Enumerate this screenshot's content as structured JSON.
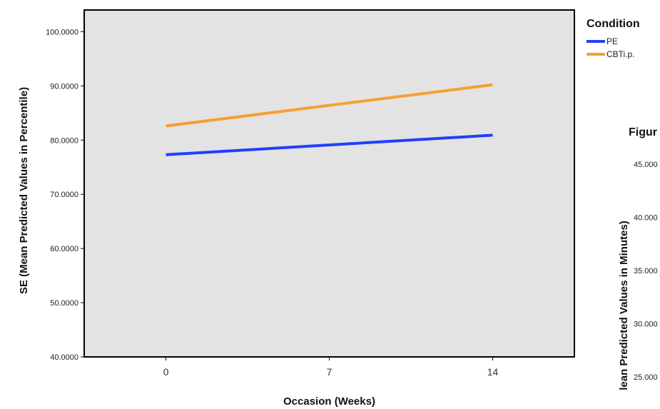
{
  "chart_data": {
    "type": "line",
    "xlabel": "Occasion (Weeks)",
    "ylabel": "SE (Mean Predicted Values in Percentile)",
    "x_ticks": [
      "0",
      "7",
      "14"
    ],
    "y_ticks": [
      "40.0000",
      "50.0000",
      "60.0000",
      "70.0000",
      "80.0000",
      "90.0000",
      "100.0000"
    ],
    "xlim": [
      -3.5,
      17.5
    ],
    "ylim": [
      40,
      104
    ],
    "grid": false,
    "legend": {
      "title": "Condition",
      "placement": "right"
    },
    "series": [
      {
        "name": "PE",
        "color": "#1f3fff",
        "x": [
          0,
          14
        ],
        "y": [
          77.3,
          80.9
        ]
      },
      {
        "name": "CBTi.p.",
        "color": "#f5a02c",
        "x": [
          0,
          14
        ],
        "y": [
          82.6,
          90.2
        ]
      }
    ]
  },
  "partial_chart": {
    "title_fragment": "Figur",
    "ylabel_fragment": "lean Predicted Values in Minutes)",
    "y_ticks": [
      "45.000",
      "40.000",
      "35.000",
      "30.000",
      "25.000"
    ],
    "y_values": [
      45,
      40,
      35,
      30,
      25
    ]
  },
  "colors": {
    "plot_background": "#e3e3e3",
    "frame": "#000000"
  }
}
